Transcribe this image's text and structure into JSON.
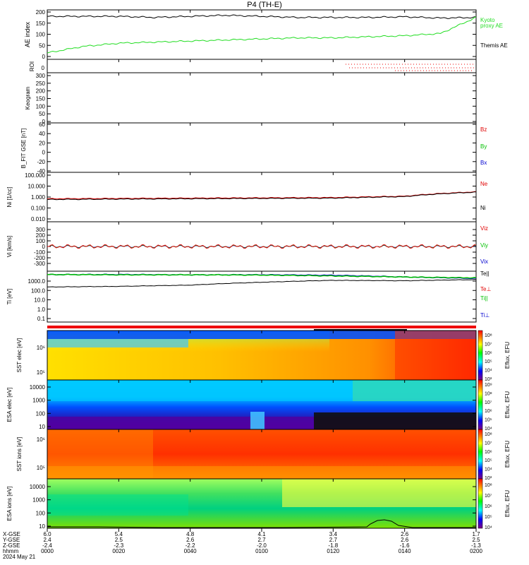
{
  "title": "P4 (TH-E)",
  "colors": {
    "black": "#000000",
    "red": "#e00000",
    "green": "#00c000",
    "blue": "#0000d0",
    "ae_kyoto": "#22dd22",
    "bar_red": "#ee0000"
  },
  "xaxis": {
    "ticks": [
      "0000",
      "0020",
      "0040",
      "0100",
      "0120",
      "0140",
      "0200"
    ],
    "rows_labels": [
      "X-GSE",
      "Y-GSE",
      "Z-GSE",
      "hhmm",
      "2024 May 21"
    ],
    "xgse": [
      "6.0",
      "5.4",
      "4.8",
      "4.1",
      "3.4",
      "2.6",
      "1.7"
    ],
    "ygse": [
      "2.4",
      "2.5",
      "2.6",
      "2.7",
      "2.7",
      "2.6",
      "2.5"
    ],
    "zgse": [
      "-2.4",
      "-2.3",
      "-2.2",
      "-2.0",
      "-1.8",
      "-1.6",
      "-1.3"
    ]
  },
  "panels": {
    "ae": {
      "ylabel": "AE index",
      "yticks": [
        "200",
        "150",
        "100",
        "50",
        "0"
      ],
      "legend": [
        "Kyoto",
        "proxy AE",
        "Themis AE"
      ]
    },
    "roi": {
      "ylabel": "ROI",
      "yticks": [
        "0"
      ]
    },
    "keogram": {
      "ylabel": "Keogram",
      "yticks": [
        "300",
        "250",
        "200",
        "150",
        "100",
        "50",
        "0"
      ]
    },
    "bfield": {
      "ylabel": "B_FIT GSE [nT]",
      "yticks": [
        "60",
        "40",
        "20",
        "0",
        "-20",
        "-40"
      ],
      "legend": [
        "Bz",
        "By",
        "Bx"
      ]
    },
    "density": {
      "ylabel": "Ni [1/cc]",
      "yticks": [
        "100.000",
        "10.000",
        "1.000",
        "0.100",
        "0.010"
      ],
      "legend": [
        "Ne",
        "Ni"
      ]
    },
    "velocity": {
      "ylabel": "Vi [km/s]",
      "yticks": [
        "300",
        "200",
        "100",
        "0",
        "-100",
        "-200",
        "-300"
      ],
      "legend": [
        "Viz",
        "Viy",
        "Vix"
      ]
    },
    "temp": {
      "ylabel": "Ti [eV]",
      "yticks": [
        "1000.0",
        "100.0",
        "10.0",
        "1.0",
        "0.1"
      ],
      "legend": [
        "Te||",
        "Te⊥",
        "Ti||",
        "Ti⊥"
      ]
    },
    "sst_e": {
      "ylabel": "SST elec [eV]",
      "yticks": [
        "10⁶",
        "10⁵"
      ],
      "cbar_label": "Eflux, EFU",
      "cbar_ticks": [
        "10⁸",
        "10⁷",
        "10⁶",
        "10⁵",
        "10⁴",
        "10³"
      ]
    },
    "esa_e": {
      "ylabel": "ESA elec [eV]",
      "yticks": [
        "10000",
        "1000",
        "100",
        "10"
      ],
      "cbar_label": "Eflux, EFU",
      "cbar_ticks": [
        "10⁹",
        "10⁸",
        "10⁷",
        "10⁶",
        "10⁵",
        "10⁴"
      ]
    },
    "sst_i": {
      "ylabel": "SST ions [eV]",
      "yticks": [
        "10⁶",
        "10⁵"
      ],
      "cbar_label": "Eflux, EFU",
      "cbar_ticks": [
        "10⁸",
        "10⁷",
        "10⁶",
        "10⁵",
        "10⁴",
        "10³"
      ]
    },
    "esa_i": {
      "ylabel": "ESA ions [eV]",
      "yticks": [
        "10000",
        "1000",
        "100",
        "10"
      ],
      "cbar_label": "Eflux, EFU",
      "cbar_ticks": [
        "10⁸",
        "10⁷",
        "10⁶",
        "10⁵",
        "10⁴"
      ]
    }
  },
  "chart_data": [
    {
      "type": "line",
      "name": "AE index",
      "ylim": [
        -20,
        210
      ],
      "x_minutes": [
        0,
        10,
        20,
        30,
        40,
        50,
        60,
        70,
        80,
        90,
        100,
        110,
        120
      ],
      "series": [
        {
          "name": "Themis AE",
          "color": "black",
          "values": [
            180,
            180,
            180,
            175,
            180,
            185,
            180,
            175,
            175,
            175,
            178,
            172,
            175
          ]
        },
        {
          "name": "Kyoto proxy AE",
          "color": "green",
          "values": [
            10,
            40,
            55,
            60,
            65,
            70,
            75,
            80,
            80,
            85,
            90,
            100,
            175
          ]
        }
      ]
    },
    {
      "type": "line",
      "name": "Ni/Ne",
      "yscale": "log",
      "ylim": [
        0.01,
        100
      ],
      "x_minutes": [
        0,
        20,
        40,
        60,
        80,
        100,
        120
      ],
      "series": [
        {
          "name": "Ne",
          "color": "red",
          "values": [
            0.7,
            0.75,
            0.8,
            0.85,
            0.9,
            1.2,
            3.0
          ]
        },
        {
          "name": "Ni",
          "color": "black",
          "values": [
            0.6,
            0.65,
            0.7,
            0.75,
            0.8,
            1.1,
            2.8
          ]
        }
      ]
    },
    {
      "type": "line",
      "name": "Vi",
      "ylim": [
        -300,
        300
      ],
      "x_minutes": [
        0,
        20,
        40,
        60,
        80,
        100,
        120
      ],
      "series": [
        {
          "name": "Viz",
          "color": "red",
          "values": [
            0,
            0,
            0,
            0,
            0,
            0,
            0
          ]
        },
        {
          "name": "Viy",
          "color": "green",
          "values": [
            0,
            0,
            0,
            0,
            0,
            0,
            0
          ]
        },
        {
          "name": "Vix",
          "color": "blue",
          "values": [
            0,
            0,
            0,
            0,
            0,
            0,
            0
          ]
        }
      ]
    },
    {
      "type": "line",
      "name": "Ti",
      "yscale": "log",
      "ylim": [
        0.1,
        3000
      ],
      "x_minutes": [
        0,
        20,
        40,
        60,
        80,
        100,
        120
      ],
      "series": [
        {
          "name": "Te||",
          "color": "black",
          "values": [
            150,
            170,
            220,
            400,
            600,
            550,
            700
          ]
        },
        {
          "name": "Ti||",
          "color": "green",
          "values": [
            2000,
            1900,
            1900,
            1800,
            1500,
            1200,
            1000
          ]
        },
        {
          "name": "Ti⊥",
          "color": "blue",
          "values": [
            2000,
            2000,
            1900,
            1900,
            1700,
            1200,
            900
          ]
        }
      ]
    }
  ]
}
